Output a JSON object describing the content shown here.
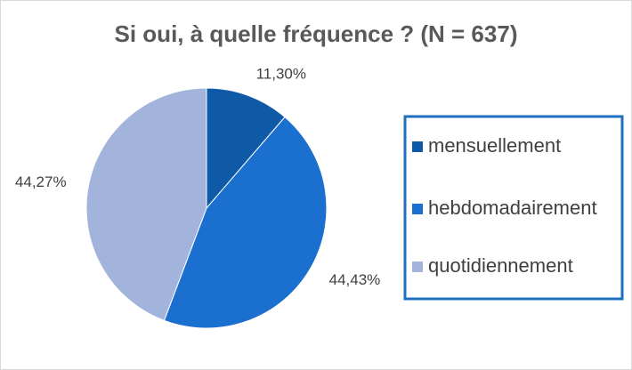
{
  "chart_data": {
    "type": "pie",
    "title": "Si oui, à quelle fréquence ? (N = 637)",
    "categories": [
      "mensuellement",
      "hebdomadairement",
      "quotidiennement"
    ],
    "values": [
      11.3,
      44.43,
      44.27
    ],
    "value_labels": [
      "11,30%",
      "44,43%",
      "44,27%"
    ],
    "colors": [
      "#0e5aa7",
      "#1a6fcf",
      "#a3b4dc"
    ],
    "legend": "right"
  }
}
